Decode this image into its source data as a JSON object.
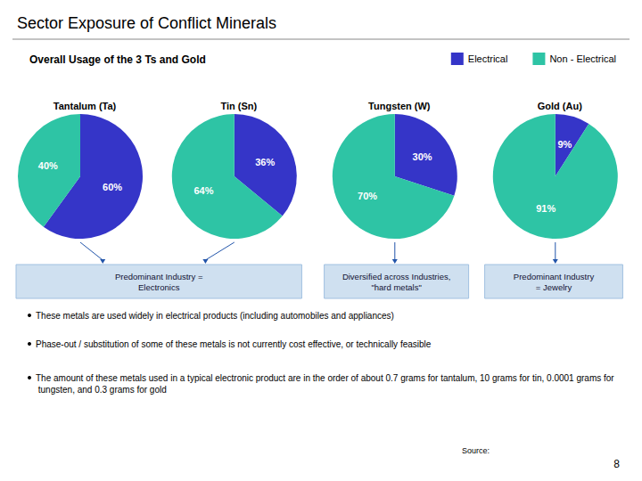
{
  "title": "Sector Exposure of Conflict Minerals",
  "subtitle": "Overall Usage of the 3 Ts and Gold",
  "annotations": [
    "Predominant Industry =\nElectronics",
    "Diversified across Industries,\n\"hard metals\"",
    "Predominant Industry\n= Jewelry",
    "These metals are used widely in electrical products (including automobiles and appliances)",
    "Phase-out / substitution of some of these metals is not currently cost effective, or technically feasible",
    "The amount of these metals used in a typical electronic product are in the order of about 0.7 grams for tantalum, 10 grams for tin, 0.0001 grams for tungsten, and 0.3 grams for gold",
    "Source:",
    "8"
  ],
  "chart_data": [
    {
      "type": "pie",
      "title": "Tantalum (Ta)",
      "categories": [
        "Electrical",
        "Non - Electrical"
      ],
      "values": [
        60,
        40
      ],
      "value_labels": [
        "60%",
        "40%"
      ],
      "colors": [
        "#3535c8",
        "#2ec4a5"
      ],
      "data_labels": true,
      "legend": "upper right"
    },
    {
      "type": "pie",
      "title": "Tin (Sn)",
      "categories": [
        "Electrical",
        "Non - Electrical"
      ],
      "values": [
        36,
        64
      ],
      "value_labels": [
        "36%",
        "64%"
      ],
      "colors": [
        "#3535c8",
        "#2ec4a5"
      ],
      "data_labels": true,
      "legend": "upper right"
    },
    {
      "type": "pie",
      "title": "Tungsten (W)",
      "categories": [
        "Electrical",
        "Non - Electrical"
      ],
      "values": [
        30,
        70
      ],
      "value_labels": [
        "30%",
        "70%"
      ],
      "colors": [
        "#3535c8",
        "#2ec4a5"
      ],
      "data_labels": true,
      "legend": "upper right"
    },
    {
      "type": "pie",
      "title": "Gold (Au)",
      "categories": [
        "Electrical",
        "Non - Electrical"
      ],
      "values": [
        9,
        91
      ],
      "value_labels": [
        "9%",
        "91%"
      ],
      "colors": [
        "#3535c8",
        "#2ec4a5"
      ],
      "data_labels": true,
      "legend": "upper right"
    }
  ]
}
